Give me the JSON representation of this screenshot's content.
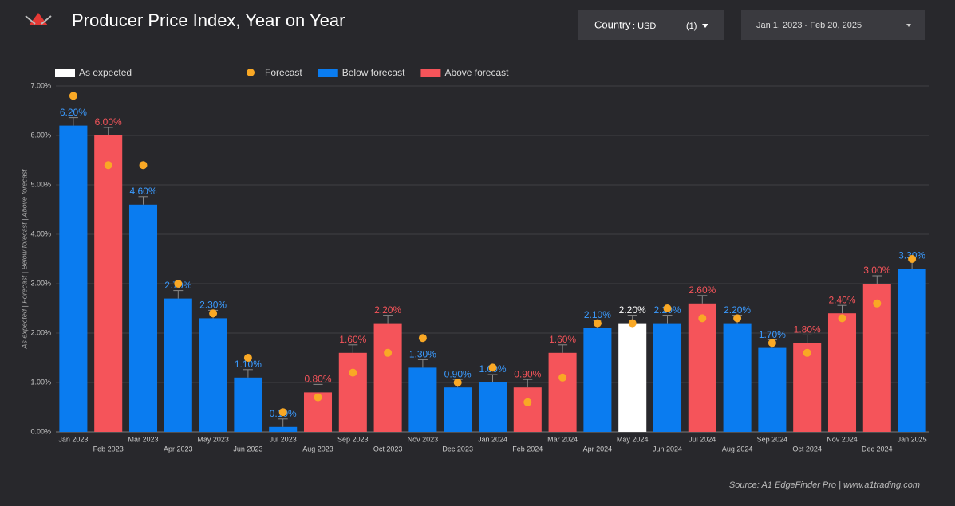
{
  "chart_data": {
    "type": "bar",
    "title": "Producer Price Index, Year on Year",
    "y_label": "As expected | Forecast | Below forecast | Above forecast",
    "categories": [
      "Jan 2023",
      "Feb 2023",
      "Mar 2023",
      "Apr 2023",
      "May 2023",
      "Jun 2023",
      "Jul 2023",
      "Aug 2023",
      "Sep 2023",
      "Oct 2023",
      "Nov 2023",
      "Dec 2023",
      "Jan 2024",
      "Feb 2024",
      "Mar 2024",
      "Apr 2024",
      "May 2024",
      "Jun 2024",
      "Jul 2024",
      "Aug 2024",
      "Sep 2024",
      "Oct 2024",
      "Nov 2024",
      "Dec 2024",
      "Jan 2025"
    ],
    "series": [
      {
        "name": "As expected",
        "color": "#ffffff",
        "type": "bar",
        "values": [
          null,
          null,
          null,
          null,
          null,
          null,
          null,
          null,
          null,
          null,
          null,
          null,
          null,
          null,
          null,
          null,
          2.2,
          null,
          null,
          null,
          null,
          null,
          null,
          null,
          null
        ],
        "value_labels": [
          null,
          null,
          null,
          null,
          null,
          null,
          null,
          null,
          null,
          null,
          null,
          null,
          null,
          null,
          null,
          null,
          "2.20%",
          null,
          null,
          null,
          null,
          null,
          null,
          null,
          null
        ]
      },
      {
        "name": "Forecast",
        "color": "#f9a825",
        "type": "scatter",
        "values": [
          6.8,
          5.4,
          5.4,
          3.0,
          2.4,
          1.5,
          0.4,
          0.7,
          1.2,
          1.6,
          1.9,
          1.0,
          1.3,
          0.6,
          1.1,
          2.2,
          2.2,
          2.5,
          2.3,
          2.3,
          1.8,
          1.6,
          2.3,
          2.6,
          3.5
        ]
      },
      {
        "name": "Below forecast",
        "color": "#0a7cf0",
        "type": "bar",
        "values": [
          6.2,
          null,
          4.6,
          2.7,
          2.3,
          1.1,
          0.1,
          null,
          null,
          null,
          1.3,
          0.9,
          1.0,
          null,
          null,
          2.1,
          null,
          2.2,
          null,
          2.2,
          1.7,
          null,
          null,
          null,
          3.3
        ],
        "value_labels": [
          "6.20%",
          null,
          "4.60%",
          "2.70%",
          "2.30%",
          "1.10%",
          "0.10%",
          null,
          null,
          null,
          "1.30%",
          "0.90%",
          "1.00%",
          null,
          null,
          "2.10%",
          null,
          "2.20%",
          null,
          "2.20%",
          "1.70%",
          null,
          null,
          null,
          "3.30%"
        ]
      },
      {
        "name": "Above forecast",
        "color": "#f5545a",
        "type": "bar",
        "values": [
          null,
          6.0,
          null,
          null,
          null,
          null,
          null,
          0.8,
          1.6,
          2.2,
          null,
          null,
          null,
          0.9,
          1.6,
          null,
          null,
          null,
          2.6,
          null,
          null,
          1.8,
          2.4,
          3.0,
          null
        ],
        "value_labels": [
          null,
          "6.00%",
          null,
          null,
          null,
          null,
          null,
          "0.80%",
          "1.60%",
          "2.20%",
          null,
          null,
          null,
          "0.90%",
          "1.60%",
          null,
          null,
          null,
          "2.60%",
          null,
          null,
          "1.80%",
          "2.40%",
          "3.00%",
          null
        ]
      }
    ],
    "ylim": [
      0,
      7
    ],
    "yticks": [
      {
        "value": 0,
        "label": "0.00%"
      },
      {
        "value": 1,
        "label": "1.00%"
      },
      {
        "value": 2,
        "label": "2.00%"
      },
      {
        "value": 3,
        "label": "3.00%"
      },
      {
        "value": 4,
        "label": "4.00%"
      },
      {
        "value": 5,
        "label": "5.00%"
      },
      {
        "value": 6,
        "label": "6.00%"
      },
      {
        "value": 7,
        "label": "7.00%"
      }
    ],
    "grid": true,
    "legend": "top-left"
  },
  "controls": {
    "country_label": "Country",
    "country_value": ": USD",
    "country_count": "(1)",
    "date_range": "Jan 1, 2023 - Feb 20, 2025"
  },
  "source": "Source: A1 EdgeFinder Pro | www.a1trading.com"
}
